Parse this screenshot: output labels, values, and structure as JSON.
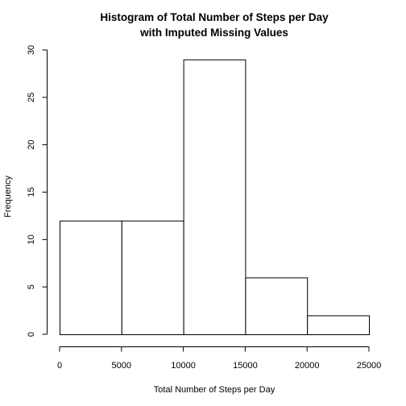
{
  "chart_data": {
    "type": "histogram",
    "title": [
      "Histogram of Total Number of Steps per Day",
      "with Imputed Missing Values"
    ],
    "xlabel": "Total Number of Steps per Day",
    "ylabel": "Frequency",
    "bins": [
      {
        "start": 0,
        "end": 5000,
        "count": 12
      },
      {
        "start": 5000,
        "end": 10000,
        "count": 12
      },
      {
        "start": 10000,
        "end": 15000,
        "count": 29
      },
      {
        "start": 15000,
        "end": 20000,
        "count": 6
      },
      {
        "start": 20000,
        "end": 25000,
        "count": 2
      }
    ],
    "xlim": [
      0,
      25000
    ],
    "ylim": [
      0,
      30
    ],
    "xticks": [
      0,
      5000,
      10000,
      15000,
      20000,
      25000
    ],
    "yticks": [
      0,
      5,
      10,
      15,
      20,
      25,
      30
    ],
    "grid": false,
    "legend": "none"
  }
}
